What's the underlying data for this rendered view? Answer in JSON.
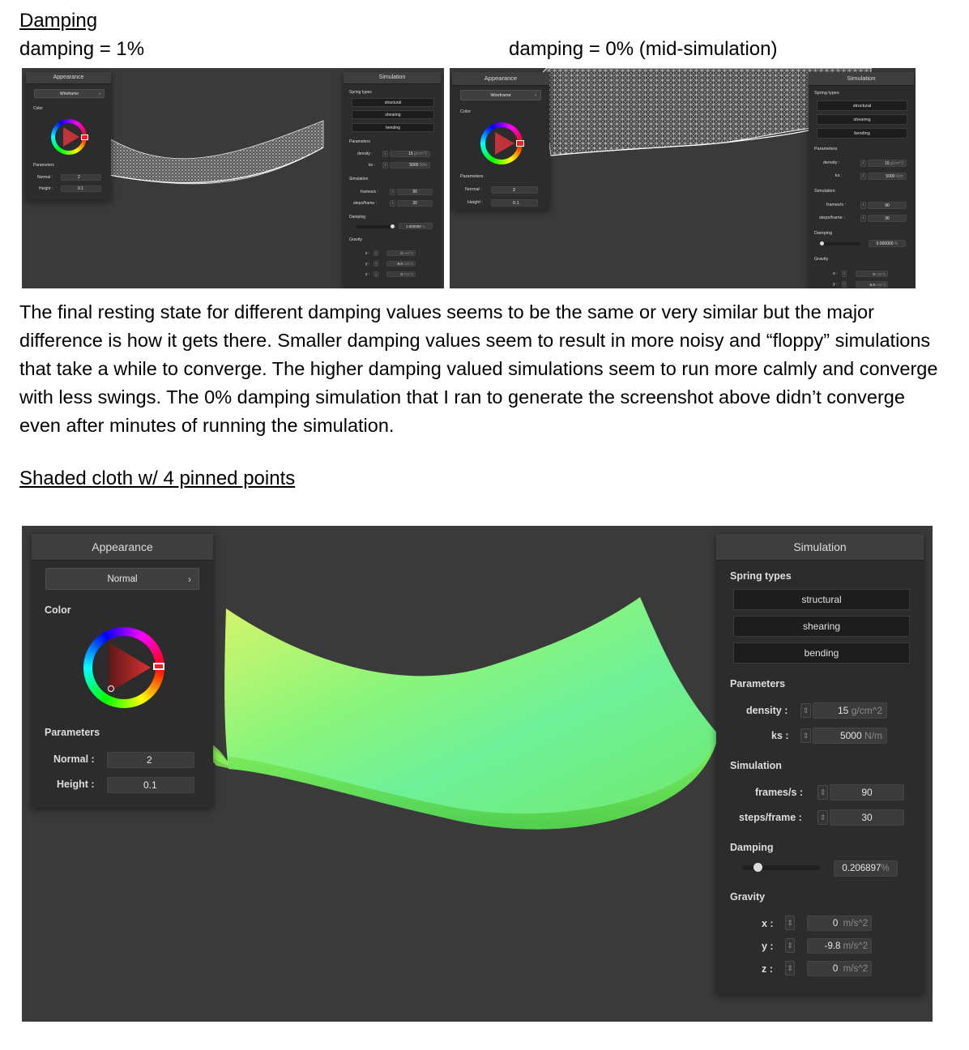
{
  "headings": {
    "damping": "Damping",
    "shaded": "Shaded cloth w/ 4 pinned points"
  },
  "captions": {
    "left": "damping = 1%",
    "right": "damping = 0% (mid-simulation)"
  },
  "paragraph": "The final resting state for different damping values seems to be the same or very similar but the major difference is how it gets there. Smaller damping values seem to result in more noisy and “floppy” simulations that take a while to converge. The higher damping valued simulations seem to run more calmly and converge with less swings. The 0% damping simulation that I ran to generate the screenshot above didn’t converge even after minutes of running the simulation.",
  "colors": {
    "viewport_bg": "#3a3a3a",
    "panel_bg": "#2c2c2c",
    "cloth": "#7dff6a",
    "wire": "#ffffff"
  },
  "shot1": {
    "appearance": {
      "title": "Appearance",
      "mode": "Wireframe",
      "color_label": "Color",
      "params_label": "Parameters",
      "normal_label": "Normal :",
      "normal_value": "2",
      "height_label": "Height :",
      "height_value": "0.1"
    },
    "simulation": {
      "title": "Simulation",
      "spring_types": "Spring types",
      "structural": "structural",
      "shearing": "shearing",
      "bending": "bending",
      "parameters": "Parameters",
      "density_label": "density :",
      "density_value": "15",
      "density_unit": "g/cm^2",
      "ks_label": "ks :",
      "ks_value": "5000",
      "ks_unit": "N/m",
      "sim_label": "Simulation",
      "fps_label": "frames/s :",
      "fps_value": "90",
      "spf_label": "steps/frame :",
      "spf_value": "30",
      "damping_label": "Damping",
      "damping_value": "1.000000",
      "damping_unit": "%",
      "gravity_label": "Gravity",
      "gx_label": "x :",
      "gx_value": "0",
      "gy_label": "y :",
      "gy_value": "-9.8",
      "gz_label": "z :",
      "gz_value": "0",
      "g_unit": "m/s^2"
    }
  },
  "shot2": {
    "appearance": {
      "title": "Appearance",
      "mode": "Wireframe",
      "color_label": "Color",
      "params_label": "Parameters",
      "normal_label": "Normal :",
      "normal_value": "2",
      "height_label": "Height :",
      "height_value": "0.1"
    },
    "simulation": {
      "title": "Simulation",
      "spring_types": "Spring types",
      "structural": "structural",
      "shearing": "shearing",
      "bending": "bending",
      "parameters": "Parameters",
      "density_label": "density :",
      "density_value": "15",
      "density_unit": "g/cm^2",
      "ks_label": "ks :",
      "ks_value": "5000",
      "ks_unit": "N/m",
      "sim_label": "Simulation",
      "fps_label": "frames/s :",
      "fps_value": "90",
      "spf_label": "steps/frame :",
      "spf_value": "30",
      "damping_label": "Damping",
      "damping_value": "0.000000",
      "damping_unit": "%",
      "gravity_label": "Gravity",
      "gx_label": "x :",
      "gx_value": "0",
      "gy_label": "y :",
      "gy_value": "-9.8",
      "g_unit": "m/s^2"
    }
  },
  "shot3": {
    "appearance": {
      "title": "Appearance",
      "mode": "Normal",
      "color_label": "Color",
      "params_label": "Parameters",
      "normal_label": "Normal :",
      "normal_value": "2",
      "height_label": "Height :",
      "height_value": "0.1"
    },
    "simulation": {
      "title": "Simulation",
      "spring_types": "Spring types",
      "structural": "structural",
      "shearing": "shearing",
      "bending": "bending",
      "parameters": "Parameters",
      "density_label": "density :",
      "density_value": "15",
      "density_unit": "g/cm^2",
      "ks_label": "ks :",
      "ks_value": "5000",
      "ks_unit": "N/m",
      "sim_label": "Simulation",
      "fps_label": "frames/s :",
      "fps_value": "90",
      "spf_label": "steps/frame :",
      "spf_value": "30",
      "damping_label": "Damping",
      "damping_value": "0.206897",
      "damping_unit": "%",
      "gravity_label": "Gravity",
      "gx_label": "x :",
      "gx_value": "0",
      "gy_label": "y :",
      "gy_value": "-9.8",
      "gz_label": "z :",
      "gz_value": "0",
      "g_unit": "m/s^2"
    }
  }
}
